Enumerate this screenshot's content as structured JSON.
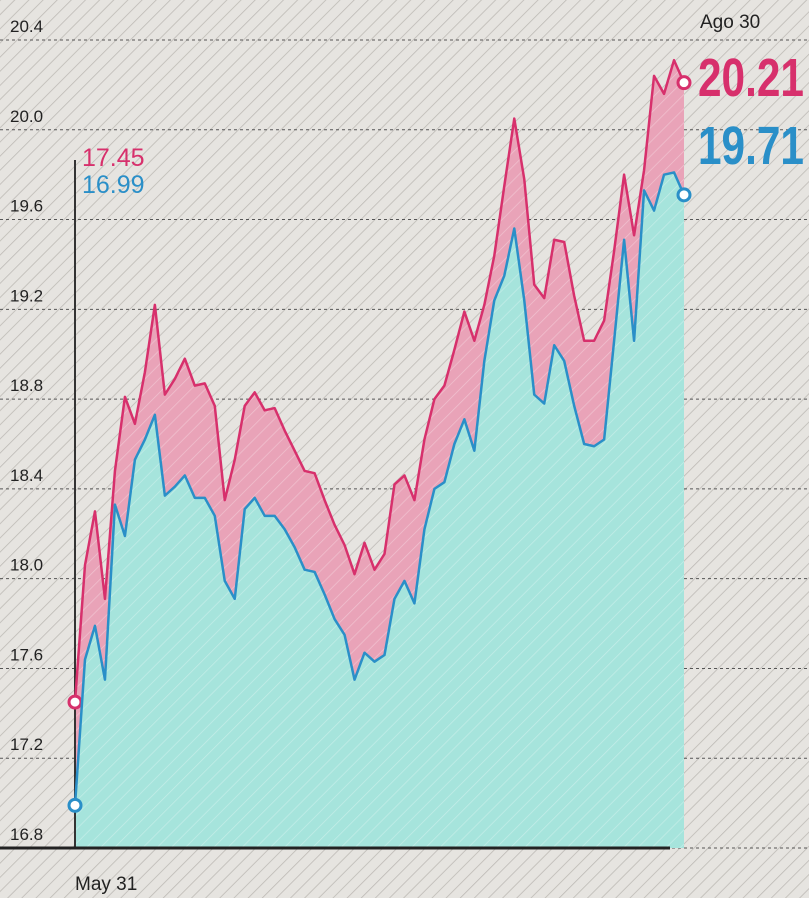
{
  "chart_data": {
    "type": "line",
    "start_label": "May 31",
    "end_label": "Ago 30",
    "categories": [
      "May 31",
      null,
      null,
      null,
      null,
      null,
      null,
      null,
      null,
      null,
      null,
      null,
      null,
      null,
      null,
      null,
      null,
      null,
      null,
      null,
      null,
      null,
      null,
      null,
      null,
      null,
      null,
      null,
      null,
      null,
      null,
      null,
      null,
      null,
      null,
      null,
      null,
      null,
      null,
      null,
      null,
      null,
      null,
      null,
      null,
      null,
      null,
      null,
      null,
      null,
      null,
      null,
      null,
      null,
      null,
      null,
      null,
      null,
      null,
      null,
      null,
      "Ago 30"
    ],
    "series": [
      {
        "color": "#d7306c",
        "values": [
          17.45,
          18.06,
          18.3,
          17.91,
          18.48,
          18.81,
          18.69,
          18.92,
          19.22,
          18.82,
          18.89,
          18.98,
          18.86,
          18.87,
          18.77,
          18.35,
          18.53,
          18.77,
          18.83,
          18.75,
          18.76,
          18.66,
          18.57,
          18.48,
          18.47,
          18.35,
          18.24,
          18.15,
          18.02,
          18.16,
          18.04,
          18.11,
          18.42,
          18.46,
          18.35,
          18.62,
          18.8,
          18.86,
          19.02,
          19.19,
          19.06,
          19.22,
          19.44,
          19.75,
          20.05,
          19.78,
          19.31,
          19.25,
          19.51,
          19.5,
          19.26,
          19.06,
          19.06,
          19.15,
          19.46,
          19.8,
          19.53,
          19.82,
          20.24,
          20.16,
          20.31,
          20.21
        ]
      },
      {
        "color": "#2a8fc8",
        "values": [
          16.99,
          17.64,
          17.79,
          17.55,
          18.33,
          18.19,
          18.53,
          18.62,
          18.73,
          18.37,
          18.41,
          18.46,
          18.36,
          18.36,
          18.28,
          17.99,
          17.91,
          18.31,
          18.36,
          18.28,
          18.28,
          18.22,
          18.14,
          18.04,
          18.03,
          17.93,
          17.82,
          17.75,
          17.55,
          17.67,
          17.63,
          17.66,
          17.91,
          17.99,
          17.89,
          18.22,
          18.4,
          18.43,
          18.6,
          18.71,
          18.57,
          18.97,
          19.24,
          19.35,
          19.56,
          19.24,
          18.82,
          18.78,
          19.04,
          18.97,
          18.77,
          18.6,
          18.59,
          18.62,
          19.06,
          19.51,
          19.06,
          19.73,
          19.64,
          19.8,
          19.81,
          19.71
        ]
      }
    ],
    "band_color": "#e9a3b8",
    "area_color": "#a6e4dc",
    "ylim": [
      16.8,
      20.4
    ],
    "yticks": [
      16.8,
      17.2,
      17.6,
      {
        "value": 18,
        "label": "18.0"
      },
      18.4,
      18.8,
      19.2,
      19.6,
      {
        "value": 20,
        "label": "20.0"
      },
      20.4
    ],
    "grid": true
  }
}
